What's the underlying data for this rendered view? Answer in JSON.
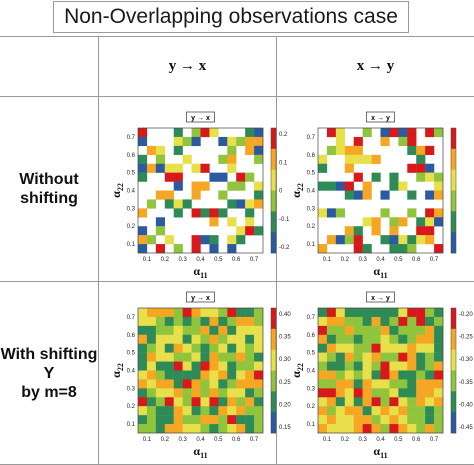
{
  "title": "Non-Overlapping observations case",
  "columns": [
    "y → x",
    "x → y"
  ],
  "rows": [
    {
      "label_lines": [
        "Without",
        "shifting"
      ]
    },
    {
      "label_lines": [
        "With shifting",
        "Y",
        "by m=8"
      ]
    }
  ],
  "panel_badges": {
    "yx": "y → x",
    "xy": "x → y"
  },
  "axis": {
    "x_label": "α",
    "x_sub": "11",
    "y_label": "α",
    "y_sub": "22",
    "ticks": [
      "0.1",
      "0.2",
      "0.3",
      "0.4",
      "0.5",
      "0.6",
      "0.7"
    ]
  },
  "colorbars": {
    "top_left": [
      "0.2",
      "0.1",
      "0",
      "-0.1",
      "-0.2"
    ],
    "top_right": [
      "",
      "",
      "",
      "",
      ""
    ],
    "bottom_left": [
      "0.40",
      "0.35",
      "0.30",
      "0.25",
      "0.20",
      "0.15"
    ],
    "bottom_right": [
      "-0.20",
      "-0.25",
      "-0.30",
      "-0.35",
      "-0.40",
      "-0.45"
    ]
  },
  "colors": {
    "high": "#d7191c",
    "mid_high": "#f5a623",
    "mid": "#e8e04a",
    "mid_low": "#8fc43c",
    "low_green": "#2e8b57",
    "low": "#2c5aa0",
    "border": "#9a9a9a"
  }
}
